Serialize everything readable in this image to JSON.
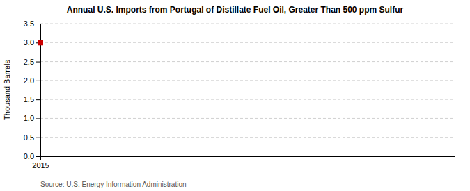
{
  "chart_data": {
    "type": "scatter",
    "title": "Annual U.S. Imports from Portugal of Distillate Fuel Oil, Greater Than 500 ppm Sulfur",
    "ylabel": "Thousand Barrels",
    "annotations": [
      "Source: U.S. Energy Information Administration"
    ],
    "x": [
      2015
    ],
    "values": [
      3.0
    ],
    "color": "#cc0000",
    "marker": "square",
    "xlim": [
      2015.0,
      2016.8
    ],
    "xticks": [
      2015
    ],
    "ylim": [
      0.0,
      3.5
    ],
    "yticks": [
      {
        "value": 0.0,
        "label": "0.0"
      },
      0.5,
      {
        "value": 1.0,
        "label": "1.0"
      },
      1.5,
      {
        "value": 2.0,
        "label": "2.0"
      },
      2.5,
      {
        "value": 3.0,
        "label": "3.0"
      },
      3.5
    ],
    "grid": true
  }
}
